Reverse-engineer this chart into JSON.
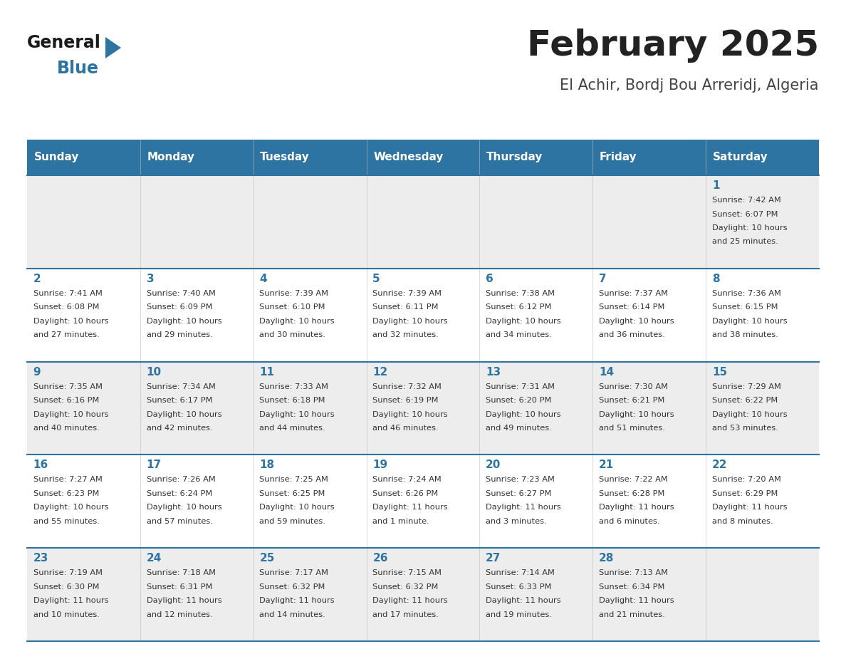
{
  "title": "February 2025",
  "subtitle": "El Achir, Bordj Bou Arreridj, Algeria",
  "header_bg": "#2E74A3",
  "header_text_color": "#FFFFFF",
  "cell_bg_light": "#EDEDED",
  "cell_bg_white": "#FFFFFF",
  "day_names": [
    "Sunday",
    "Monday",
    "Tuesday",
    "Wednesday",
    "Thursday",
    "Friday",
    "Saturday"
  ],
  "title_color": "#222222",
  "subtitle_color": "#444444",
  "day_number_color": "#2E74A3",
  "info_text_color": "#333333",
  "border_color": "#2E74A3",
  "logo_general_color": "#1a1a1a",
  "logo_blue_color": "#2E74A3",
  "calendar_data": [
    [
      null,
      null,
      null,
      null,
      null,
      null,
      {
        "day": 1,
        "sunrise": "7:42 AM",
        "sunset": "6:07 PM",
        "daylight": "10 hours and 25 minutes."
      }
    ],
    [
      {
        "day": 2,
        "sunrise": "7:41 AM",
        "sunset": "6:08 PM",
        "daylight": "10 hours and 27 minutes."
      },
      {
        "day": 3,
        "sunrise": "7:40 AM",
        "sunset": "6:09 PM",
        "daylight": "10 hours and 29 minutes."
      },
      {
        "day": 4,
        "sunrise": "7:39 AM",
        "sunset": "6:10 PM",
        "daylight": "10 hours and 30 minutes."
      },
      {
        "day": 5,
        "sunrise": "7:39 AM",
        "sunset": "6:11 PM",
        "daylight": "10 hours and 32 minutes."
      },
      {
        "day": 6,
        "sunrise": "7:38 AM",
        "sunset": "6:12 PM",
        "daylight": "10 hours and 34 minutes."
      },
      {
        "day": 7,
        "sunrise": "7:37 AM",
        "sunset": "6:14 PM",
        "daylight": "10 hours and 36 minutes."
      },
      {
        "day": 8,
        "sunrise": "7:36 AM",
        "sunset": "6:15 PM",
        "daylight": "10 hours and 38 minutes."
      }
    ],
    [
      {
        "day": 9,
        "sunrise": "7:35 AM",
        "sunset": "6:16 PM",
        "daylight": "10 hours and 40 minutes."
      },
      {
        "day": 10,
        "sunrise": "7:34 AM",
        "sunset": "6:17 PM",
        "daylight": "10 hours and 42 minutes."
      },
      {
        "day": 11,
        "sunrise": "7:33 AM",
        "sunset": "6:18 PM",
        "daylight": "10 hours and 44 minutes."
      },
      {
        "day": 12,
        "sunrise": "7:32 AM",
        "sunset": "6:19 PM",
        "daylight": "10 hours and 46 minutes."
      },
      {
        "day": 13,
        "sunrise": "7:31 AM",
        "sunset": "6:20 PM",
        "daylight": "10 hours and 49 minutes."
      },
      {
        "day": 14,
        "sunrise": "7:30 AM",
        "sunset": "6:21 PM",
        "daylight": "10 hours and 51 minutes."
      },
      {
        "day": 15,
        "sunrise": "7:29 AM",
        "sunset": "6:22 PM",
        "daylight": "10 hours and 53 minutes."
      }
    ],
    [
      {
        "day": 16,
        "sunrise": "7:27 AM",
        "sunset": "6:23 PM",
        "daylight": "10 hours and 55 minutes."
      },
      {
        "day": 17,
        "sunrise": "7:26 AM",
        "sunset": "6:24 PM",
        "daylight": "10 hours and 57 minutes."
      },
      {
        "day": 18,
        "sunrise": "7:25 AM",
        "sunset": "6:25 PM",
        "daylight": "10 hours and 59 minutes."
      },
      {
        "day": 19,
        "sunrise": "7:24 AM",
        "sunset": "6:26 PM",
        "daylight": "11 hours and 1 minute."
      },
      {
        "day": 20,
        "sunrise": "7:23 AM",
        "sunset": "6:27 PM",
        "daylight": "11 hours and 3 minutes."
      },
      {
        "day": 21,
        "sunrise": "7:22 AM",
        "sunset": "6:28 PM",
        "daylight": "11 hours and 6 minutes."
      },
      {
        "day": 22,
        "sunrise": "7:20 AM",
        "sunset": "6:29 PM",
        "daylight": "11 hours and 8 minutes."
      }
    ],
    [
      {
        "day": 23,
        "sunrise": "7:19 AM",
        "sunset": "6:30 PM",
        "daylight": "11 hours and 10 minutes."
      },
      {
        "day": 24,
        "sunrise": "7:18 AM",
        "sunset": "6:31 PM",
        "daylight": "11 hours and 12 minutes."
      },
      {
        "day": 25,
        "sunrise": "7:17 AM",
        "sunset": "6:32 PM",
        "daylight": "11 hours and 14 minutes."
      },
      {
        "day": 26,
        "sunrise": "7:15 AM",
        "sunset": "6:32 PM",
        "daylight": "11 hours and 17 minutes."
      },
      {
        "day": 27,
        "sunrise": "7:14 AM",
        "sunset": "6:33 PM",
        "daylight": "11 hours and 19 minutes."
      },
      {
        "day": 28,
        "sunrise": "7:13 AM",
        "sunset": "6:34 PM",
        "daylight": "11 hours and 21 minutes."
      },
      null
    ]
  ]
}
